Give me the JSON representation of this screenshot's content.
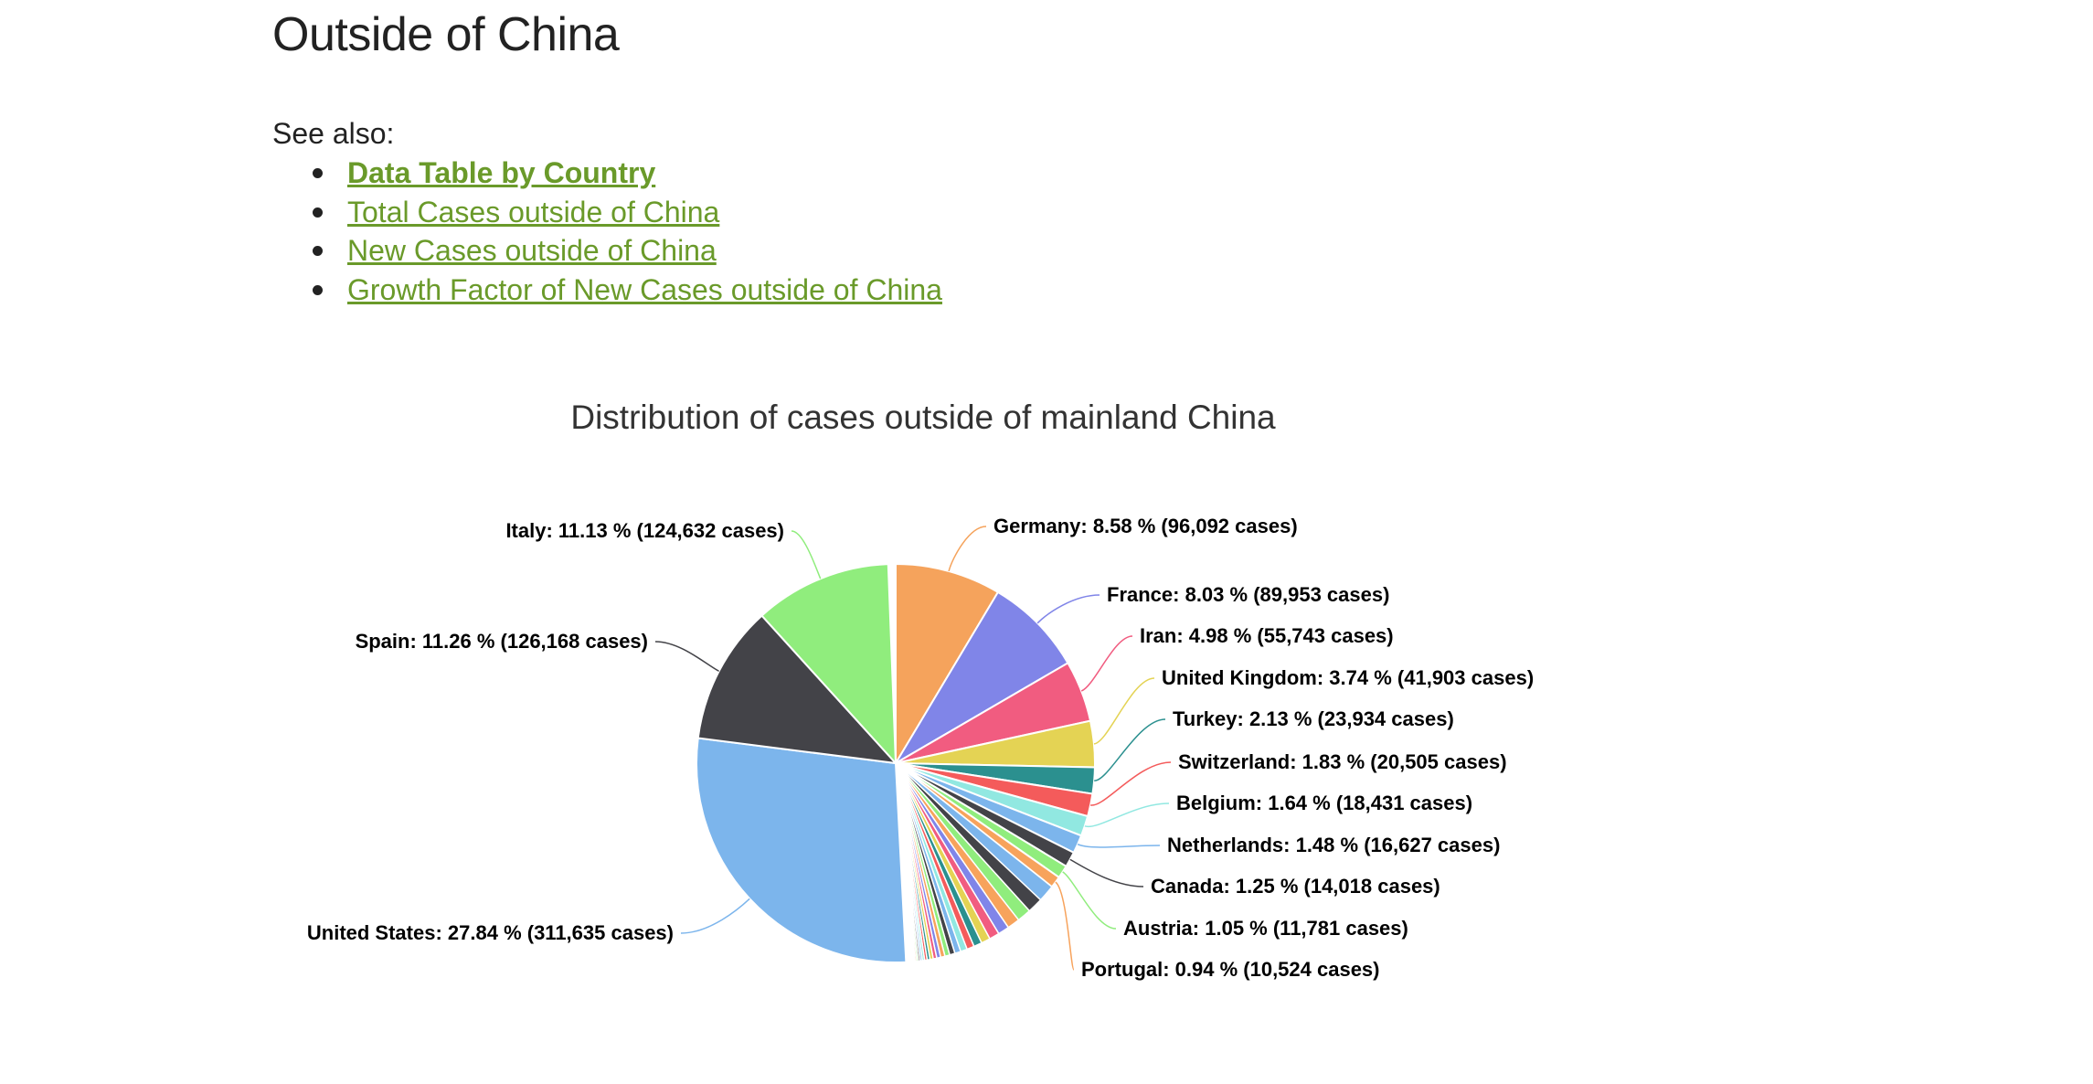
{
  "page": {
    "title": "Outside of China",
    "see_also_label": "See also:",
    "links": [
      {
        "label": "Data Table by Country",
        "bold": true
      },
      {
        "label": "Total Cases outside of China",
        "bold": false
      },
      {
        "label": "New Cases outside of China",
        "bold": false
      },
      {
        "label": "Growth Factor of New Cases outside of China",
        "bold": false
      }
    ],
    "link_color": "#6a9a2a"
  },
  "chart_data": {
    "type": "pie",
    "title": "Distribution of cases outside of mainland China",
    "start_angle_deg": 0,
    "slices": [
      {
        "name": "Germany",
        "label": "Germany: 8.58 % (96,092 cases)",
        "percent": 8.58,
        "cases": 96092,
        "color": "#f5a35c"
      },
      {
        "name": "France",
        "label": "France: 8.03 % (89,953 cases)",
        "percent": 8.03,
        "cases": 89953,
        "color": "#8085e8"
      },
      {
        "name": "Iran",
        "label": "Iran: 4.98 % (55,743 cases)",
        "percent": 4.98,
        "cases": 55743,
        "color": "#f15c80"
      },
      {
        "name": "United Kingdom",
        "label": "United Kingdom: 3.74 % (41,903 cases)",
        "percent": 3.74,
        "cases": 41903,
        "color": "#e4d354"
      },
      {
        "name": "Turkey",
        "label": "Turkey: 2.13 % (23,934 cases)",
        "percent": 2.13,
        "cases": 23934,
        "color": "#2b908f"
      },
      {
        "name": "Switzerland",
        "label": "Switzerland: 1.83 % (20,505 cases)",
        "percent": 1.83,
        "cases": 20505,
        "color": "#f45b5b"
      },
      {
        "name": "Belgium",
        "label": "Belgium: 1.64 % (18,431 cases)",
        "percent": 1.64,
        "cases": 18431,
        "color": "#91e8e1"
      },
      {
        "name": "Netherlands",
        "label": "Netherlands: 1.48 % (16,627 cases)",
        "percent": 1.48,
        "cases": 16627,
        "color": "#7cb5ec"
      },
      {
        "name": "Canada",
        "label": "Canada: 1.25 % (14,018 cases)",
        "percent": 1.25,
        "cases": 14018,
        "color": "#434348"
      },
      {
        "name": "Austria",
        "label": "Austria: 1.05 % (11,781 cases)",
        "percent": 1.05,
        "cases": 11781,
        "color": "#90ed7d"
      },
      {
        "name": "Portugal",
        "label": "Portugal: 0.94 % (10,524 cases)",
        "percent": 0.94,
        "cases": 10524,
        "color": "#f7a35c"
      },
      {
        "name": "",
        "label": "",
        "percent": 13.52,
        "cases": null,
        "color": "#cccccc",
        "is_tail": true
      },
      {
        "name": "United States",
        "label": "United States: 27.84 % (311,635 cases)",
        "percent": 27.84,
        "cases": 311635,
        "color": "#7cb5ec"
      },
      {
        "name": "Spain",
        "label": "Spain: 11.26 % (126,168 cases)",
        "percent": 11.26,
        "cases": 126168,
        "color": "#434348"
      },
      {
        "name": "Italy",
        "label": "Italy: 11.13 % (124,632 cases)",
        "percent": 11.13,
        "cases": 124632,
        "color": "#90ed7d"
      }
    ],
    "tail_palette": [
      "#7cb5ec",
      "#434348",
      "#90ed7d",
      "#f7a35c",
      "#8085e9",
      "#f15c80",
      "#e4d354",
      "#2b908f",
      "#f45b5b",
      "#91e8e1"
    ]
  }
}
